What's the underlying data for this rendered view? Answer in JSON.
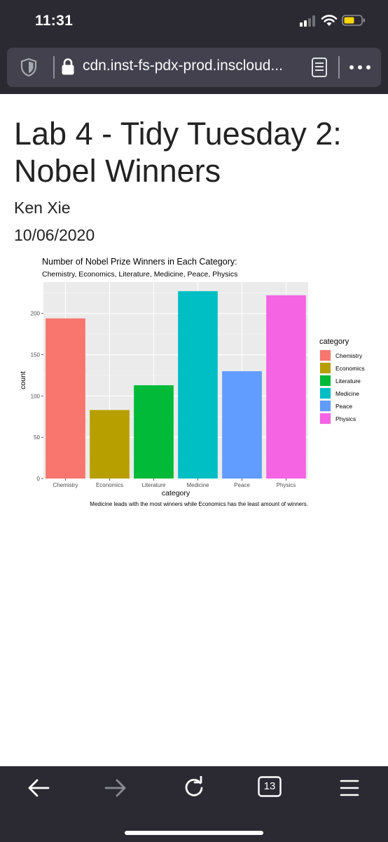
{
  "status_bar": {
    "time": "11:31"
  },
  "url_bar": {
    "url": "cdn.inst-fs-pdx-prod.inscloud..."
  },
  "document": {
    "title": "Lab 4 - Tidy Tuesday 2: Nobel Winners",
    "author": "Ken Xie",
    "date": "10/06/2020"
  },
  "chart_data": {
    "type": "bar",
    "title": "Number of Nobel Prize Winners in Each Category:",
    "subtitle": "Chemistry, Economics, Literature, Medicine, Peace, Physics",
    "xlabel": "category",
    "ylabel": "count",
    "caption": "Medicine leads with the most winners while Economics has the least amount of winners.",
    "categories": [
      "Chemistry",
      "Economics",
      "Literature",
      "Medicine",
      "Peace",
      "Physics"
    ],
    "values": [
      194,
      83,
      113,
      227,
      130,
      222
    ],
    "colors": [
      "#F8766D",
      "#B79F00",
      "#00BA38",
      "#00BFC4",
      "#619CFF",
      "#F564E3"
    ],
    "yticks": [
      0,
      50,
      100,
      150,
      200
    ],
    "ylim": [
      0,
      238
    ],
    "grid": true,
    "legend": {
      "title": "category",
      "position": "right",
      "entries": [
        "Chemistry",
        "Economics",
        "Literature",
        "Medicine",
        "Peace",
        "Physics"
      ]
    }
  },
  "toolbar": {
    "tab_count": "13"
  },
  "icons": {
    "back": "back-arrow-icon",
    "forward": "forward-arrow-icon",
    "reload": "reload-icon",
    "tabs": "tabs-icon",
    "menu": "hamburger-menu-icon",
    "shield": "shield-icon",
    "lock": "lock-icon",
    "reader": "reader-mode-icon",
    "more": "more-icon"
  }
}
